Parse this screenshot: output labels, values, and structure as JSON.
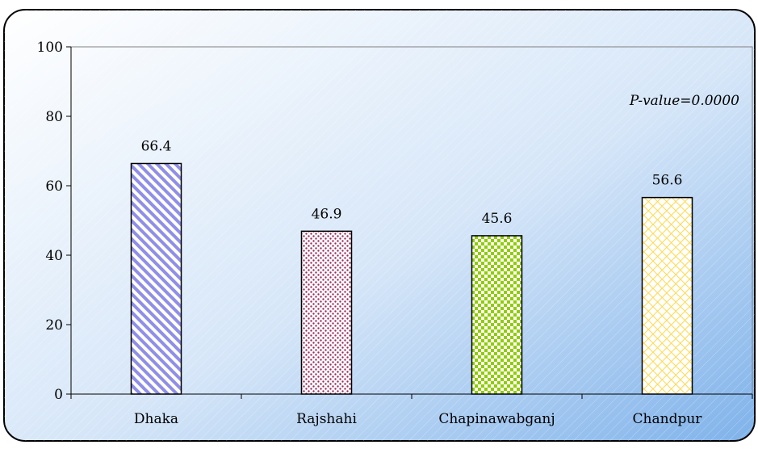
{
  "chart_data": {
    "type": "bar",
    "categories": [
      "Dhaka",
      "Rajshahi",
      "Chapinawabganj",
      "Chandpur"
    ],
    "values": [
      66.4,
      46.9,
      45.6,
      56.6
    ],
    "value_labels": [
      "66.4",
      "46.9",
      "45.6",
      "56.6"
    ],
    "yticks": [
      "0",
      "20",
      "40",
      "60",
      "80",
      "100"
    ],
    "ylim": [
      0,
      100
    ],
    "annotation": "P-value=0.0000",
    "grid": false,
    "title": "",
    "xlabel": "",
    "ylabel": ""
  },
  "colors": {
    "background_gradient_light": "#ffffff",
    "background_gradient_dark": "#7fb2ea",
    "bar_patterns": [
      {
        "fg": "#8f8fe8",
        "bg": "#ffffff"
      },
      {
        "fg": "#9b2b5c",
        "bg": "#ffffff"
      },
      {
        "fg": "#8fcc00",
        "bg": "#ffffff"
      },
      {
        "fg": "#ffd84a",
        "bg": "#ffffff"
      }
    ]
  }
}
